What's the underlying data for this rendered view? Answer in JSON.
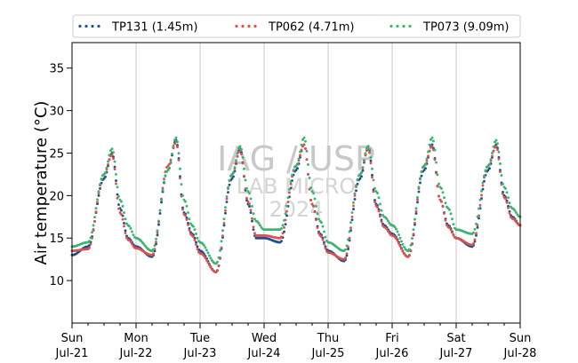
{
  "chart_data": {
    "type": "line",
    "ylabel": "Air temperature (°C)",
    "ylim": [
      5,
      38
    ],
    "yticks": [
      10,
      15,
      20,
      25,
      30,
      35
    ],
    "xlim": [
      "2024-07-21",
      "2024-07-28"
    ],
    "xtick_labels": [
      {
        "date": "2024-07-21",
        "line1": "Sun",
        "line2": "Jul-21"
      },
      {
        "date": "2024-07-22",
        "line1": "Mon",
        "line2": "Jul-22"
      },
      {
        "date": "2024-07-23",
        "line1": "Tue",
        "line2": "Jul-23"
      },
      {
        "date": "2024-07-24",
        "line1": "Wed",
        "line2": "Jul-24"
      },
      {
        "date": "2024-07-25",
        "line1": "Thu",
        "line2": "Jul-25"
      },
      {
        "date": "2024-07-26",
        "line1": "Fri",
        "line2": "Jul-26"
      },
      {
        "date": "2024-07-27",
        "line1": "Sat",
        "line2": "Jul-27"
      },
      {
        "date": "2024-07-28",
        "line1": "Sun",
        "line2": "Jul-28"
      }
    ],
    "grid": "vertical at day ticks",
    "legend_position": "top",
    "watermark": [
      "IAG / USP",
      "LAB MICRO",
      "2024"
    ],
    "series": [
      {
        "name": "TP131 (1.45m)",
        "color": "#1f4e8c",
        "style": "dotted",
        "x": [
          "2024-07-21 00:00",
          "2024-07-21 06:00",
          "2024-07-21 12:00",
          "2024-07-21 15:00",
          "2024-07-21 18:00",
          "2024-07-21 21:00",
          "2024-07-22 00:00",
          "2024-07-22 06:00",
          "2024-07-22 12:00",
          "2024-07-22 15:00",
          "2024-07-22 18:00",
          "2024-07-22 21:00",
          "2024-07-23 00:00",
          "2024-07-23 06:00",
          "2024-07-23 12:00",
          "2024-07-23 15:00",
          "2024-07-23 18:00",
          "2024-07-23 21:00",
          "2024-07-24 00:00",
          "2024-07-24 06:00",
          "2024-07-24 12:00",
          "2024-07-24 15:00",
          "2024-07-24 18:00",
          "2024-07-24 21:00",
          "2024-07-25 00:00",
          "2024-07-25 06:00",
          "2024-07-25 12:00",
          "2024-07-25 15:00",
          "2024-07-25 18:00",
          "2024-07-25 21:00",
          "2024-07-26 00:00",
          "2024-07-26 06:00",
          "2024-07-26 12:00",
          "2024-07-26 15:00",
          "2024-07-26 18:00",
          "2024-07-26 21:00",
          "2024-07-27 00:00",
          "2024-07-27 06:00",
          "2024-07-27 12:00",
          "2024-07-27 15:00",
          "2024-07-27 18:00",
          "2024-07-27 21:00",
          "2024-07-28 00:00"
        ],
        "y": [
          13.0,
          14.0,
          22.0,
          25.0,
          18.5,
          15.0,
          14.0,
          12.8,
          23.0,
          26.5,
          18.0,
          15.5,
          13.5,
          11.0,
          22.0,
          25.5,
          19.0,
          15.0,
          15.0,
          14.5,
          23.0,
          26.0,
          19.0,
          15.5,
          13.5,
          12.3,
          22.0,
          25.8,
          19.0,
          16.5,
          15.5,
          12.8,
          23.0,
          26.0,
          19.5,
          16.5,
          15.0,
          14.0,
          23.0,
          26.0,
          20.0,
          17.5,
          16.5
        ]
      },
      {
        "name": "TP062 (4.71m)",
        "color": "#d9534f",
        "style": "dotted",
        "x": [
          "2024-07-21 00:00",
          "2024-07-21 06:00",
          "2024-07-21 12:00",
          "2024-07-21 15:00",
          "2024-07-21 18:00",
          "2024-07-21 21:00",
          "2024-07-22 00:00",
          "2024-07-22 06:00",
          "2024-07-22 12:00",
          "2024-07-22 15:00",
          "2024-07-22 18:00",
          "2024-07-22 21:00",
          "2024-07-23 00:00",
          "2024-07-23 06:00",
          "2024-07-23 12:00",
          "2024-07-23 15:00",
          "2024-07-23 18:00",
          "2024-07-23 21:00",
          "2024-07-24 00:00",
          "2024-07-24 06:00",
          "2024-07-24 12:00",
          "2024-07-24 15:00",
          "2024-07-24 18:00",
          "2024-07-24 21:00",
          "2024-07-25 00:00",
          "2024-07-25 06:00",
          "2024-07-25 12:00",
          "2024-07-25 15:00",
          "2024-07-25 18:00",
          "2024-07-25 21:00",
          "2024-07-26 00:00",
          "2024-07-26 06:00",
          "2024-07-26 12:00",
          "2024-07-26 15:00",
          "2024-07-26 18:00",
          "2024-07-26 21:00",
          "2024-07-27 00:00",
          "2024-07-27 06:00",
          "2024-07-27 12:00",
          "2024-07-27 15:00",
          "2024-07-27 18:00",
          "2024-07-27 21:00",
          "2024-07-28 00:00"
        ],
        "y": [
          13.5,
          13.7,
          22.5,
          24.8,
          18.0,
          14.8,
          13.8,
          13.0,
          23.5,
          26.3,
          17.8,
          15.3,
          13.2,
          11.0,
          22.5,
          25.3,
          19.3,
          15.3,
          15.3,
          15.0,
          23.5,
          26.0,
          19.0,
          15.3,
          13.3,
          12.5,
          22.5,
          25.5,
          18.8,
          16.3,
          15.3,
          12.8,
          23.5,
          25.8,
          19.5,
          16.3,
          15.0,
          14.2,
          23.5,
          25.8,
          19.8,
          17.3,
          16.5
        ]
      },
      {
        "name": "TP073 (9.09m)",
        "color": "#3cb371",
        "style": "dotted",
        "x": [
          "2024-07-21 00:00",
          "2024-07-21 06:00",
          "2024-07-21 12:00",
          "2024-07-21 15:00",
          "2024-07-21 18:00",
          "2024-07-21 21:00",
          "2024-07-22 00:00",
          "2024-07-22 06:00",
          "2024-07-22 12:00",
          "2024-07-22 15:00",
          "2024-07-22 18:00",
          "2024-07-22 21:00",
          "2024-07-23 00:00",
          "2024-07-23 06:00",
          "2024-07-23 12:00",
          "2024-07-23 15:00",
          "2024-07-23 18:00",
          "2024-07-23 21:00",
          "2024-07-24 00:00",
          "2024-07-24 06:00",
          "2024-07-24 12:00",
          "2024-07-24 15:00",
          "2024-07-24 18:00",
          "2024-07-24 21:00",
          "2024-07-25 00:00",
          "2024-07-25 06:00",
          "2024-07-25 12:00",
          "2024-07-25 15:00",
          "2024-07-25 18:00",
          "2024-07-25 21:00",
          "2024-07-26 00:00",
          "2024-07-26 06:00",
          "2024-07-26 12:00",
          "2024-07-26 15:00",
          "2024-07-26 18:00",
          "2024-07-26 21:00",
          "2024-07-27 00:00",
          "2024-07-27 06:00",
          "2024-07-27 12:00",
          "2024-07-27 15:00",
          "2024-07-27 18:00",
          "2024-07-27 21:00",
          "2024-07-28 00:00"
        ],
        "y": [
          14.0,
          14.5,
          22.5,
          25.5,
          19.5,
          16.5,
          15.0,
          13.5,
          23.0,
          26.8,
          19.5,
          16.5,
          14.5,
          12.0,
          22.5,
          25.8,
          20.5,
          17.0,
          16.0,
          16.0,
          23.5,
          26.8,
          20.5,
          17.0,
          14.5,
          13.5,
          22.5,
          25.8,
          20.5,
          17.5,
          16.5,
          13.5,
          23.5,
          26.8,
          21.0,
          18.5,
          16.0,
          15.5,
          23.5,
          26.5,
          21.0,
          18.5,
          17.5
        ]
      }
    ]
  }
}
